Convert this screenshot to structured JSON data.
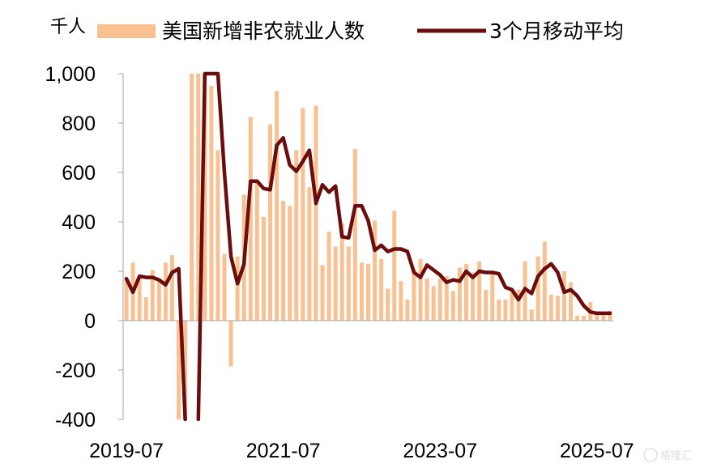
{
  "chart_data": {
    "type": "bar+line",
    "unit_label": "千人",
    "ylim": [
      -400,
      1000
    ],
    "yticks": [
      -400,
      -200,
      0,
      200,
      400,
      600,
      800,
      1000
    ],
    "ytick_labels": [
      "-400",
      "-200",
      "0",
      "200",
      "400",
      "600",
      "800",
      "1,000"
    ],
    "xtick_labels": [
      "2019-07",
      "2021-07",
      "2023-07",
      "2025-07"
    ],
    "x": [
      "2019-07",
      "2019-08",
      "2019-09",
      "2019-10",
      "2019-11",
      "2019-12",
      "2020-01",
      "2020-02",
      "2020-03",
      "2020-04",
      "2020-05",
      "2020-06",
      "2020-07",
      "2020-08",
      "2020-09",
      "2020-10",
      "2020-11",
      "2020-12",
      "2021-01",
      "2021-02",
      "2021-03",
      "2021-04",
      "2021-05",
      "2021-06",
      "2021-07",
      "2021-08",
      "2021-09",
      "2021-10",
      "2021-11",
      "2021-12",
      "2022-01",
      "2022-02",
      "2022-03",
      "2022-04",
      "2022-05",
      "2022-06",
      "2022-07",
      "2022-08",
      "2022-09",
      "2022-10",
      "2022-11",
      "2022-12",
      "2023-01",
      "2023-02",
      "2023-03",
      "2023-04",
      "2023-05",
      "2023-06",
      "2023-07",
      "2023-08",
      "2023-09",
      "2023-10",
      "2023-11",
      "2023-12",
      "2024-01",
      "2024-02",
      "2024-03",
      "2024-04",
      "2024-05",
      "2024-06",
      "2024-07",
      "2024-08",
      "2024-09",
      "2024-10",
      "2024-11",
      "2024-12",
      "2025-01",
      "2025-02",
      "2025-03",
      "2025-04",
      "2025-05",
      "2025-06",
      "2025-07",
      "2025-08",
      "2025-09"
    ],
    "series": [
      {
        "name": "美国新增非农就业人数",
        "type": "bar",
        "color": "#f9c192",
        "values": [
          170,
          235,
          180,
          95,
          205,
          165,
          235,
          265,
          -400,
          -400,
          1000,
          1000,
          1000,
          950,
          690,
          270,
          -185,
          260,
          510,
          825,
          560,
          420,
          795,
          930,
          485,
          465,
          690,
          860,
          540,
          870,
          225,
          360,
          300,
          395,
          300,
          695,
          235,
          230,
          405,
          250,
          130,
          445,
          160,
          85,
          210,
          250,
          170,
          140,
          170,
          180,
          120,
          215,
          230,
          195,
          240,
          125,
          200,
          85,
          85,
          130,
          125,
          240,
          45,
          260,
          320,
          105,
          100,
          200,
          155,
          20,
          20,
          75,
          35,
          30,
          40
        ]
      },
      {
        "name": "3个月移动平均",
        "type": "line",
        "color": "#6b0d0d",
        "values": [
          170,
          115,
          180,
          175,
          175,
          165,
          145,
          195,
          210,
          -400,
          null,
          -400,
          1000,
          1000,
          1000,
          600,
          260,
          150,
          230,
          565,
          565,
          535,
          530,
          710,
          740,
          630,
          605,
          645,
          690,
          475,
          550,
          520,
          545,
          340,
          335,
          465,
          465,
          405,
          285,
          305,
          280,
          290,
          290,
          280,
          195,
          175,
          225,
          205,
          185,
          155,
          165,
          160,
          200,
          175,
          200,
          195,
          195,
          190,
          135,
          125,
          85,
          130,
          110,
          180,
          210,
          230,
          195,
          115,
          125,
          100,
          60,
          35,
          30,
          30,
          30
        ]
      }
    ]
  }
}
